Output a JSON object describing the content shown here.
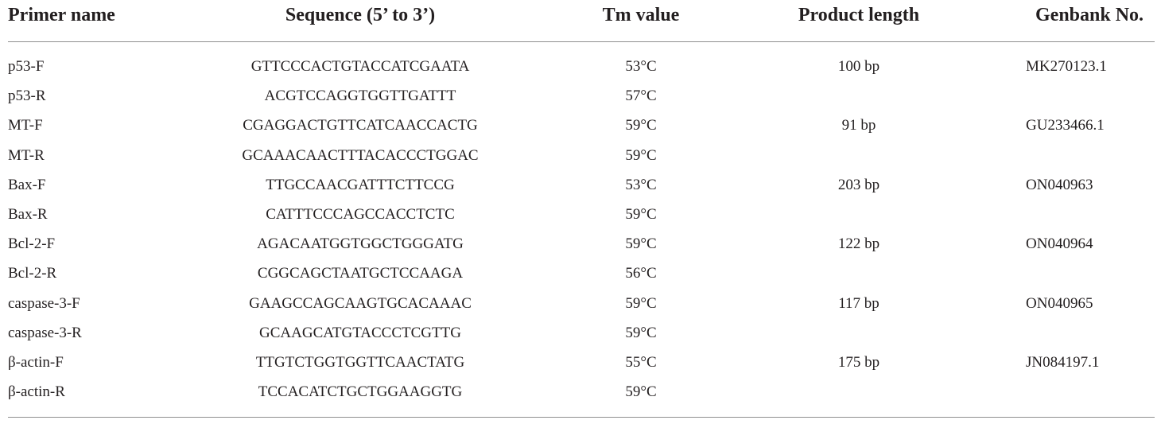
{
  "headers": {
    "primer_name": "Primer name",
    "sequence": "Sequence (5’ to 3’)",
    "tm_value": "Tm value",
    "product_length": "Product length",
    "genbank": "Genbank No."
  },
  "rows": [
    {
      "primer": "p53-F",
      "sequence": "GTTCCCACTGTACCATCGAATA",
      "tm": "53°C",
      "length": "100 bp",
      "genbank": "MK270123.1"
    },
    {
      "primer": "p53-R",
      "sequence": "ACGTCCAGGTGGTTGATTT",
      "tm": "57°C",
      "length": "",
      "genbank": ""
    },
    {
      "primer": "MT-F",
      "sequence": "CGAGGACTGTTCATCAACCACTG",
      "tm": "59°C",
      "length": "91 bp",
      "genbank": "GU233466.1"
    },
    {
      "primer": "MT-R",
      "sequence": "GCAAACAACTTTACACCCTGGAC",
      "tm": "59°C",
      "length": "",
      "genbank": ""
    },
    {
      "primer": "Bax-F",
      "sequence": "TTGCCAACGATTTCTTCCG",
      "tm": "53°C",
      "length": "203 bp",
      "genbank": "ON040963"
    },
    {
      "primer": "Bax-R",
      "sequence": "CATTTCCCAGCCACCTCTC",
      "tm": "59°C",
      "length": "",
      "genbank": ""
    },
    {
      "primer": "Bcl-2-F",
      "sequence": "AGACAATGGTGGCTGGGATG",
      "tm": "59°C",
      "length": "122 bp",
      "genbank": "ON040964"
    },
    {
      "primer": "Bcl-2-R",
      "sequence": "CGGCAGCTAATGCTCCAAGA",
      "tm": "56°C",
      "length": "",
      "genbank": ""
    },
    {
      "primer": "caspase-3-F",
      "sequence": "GAAGCCAGCAAGTGCACAAAC",
      "tm": "59°C",
      "length": "117 bp",
      "genbank": "ON040965"
    },
    {
      "primer": "caspase-3-R",
      "sequence": "GCAAGCATGTACCCTCGTTG",
      "tm": "59°C",
      "length": "",
      "genbank": ""
    },
    {
      "primer": "β-actin-F",
      "sequence": "TTGTCTGGTGGTTCAACTATG",
      "tm": "55°C",
      "length": "175 bp",
      "genbank": "JN084197.1"
    },
    {
      "primer": "β-actin-R",
      "sequence": "TCCACATCTGCTGGAAGGTG",
      "tm": "59°C",
      "length": "",
      "genbank": ""
    }
  ]
}
